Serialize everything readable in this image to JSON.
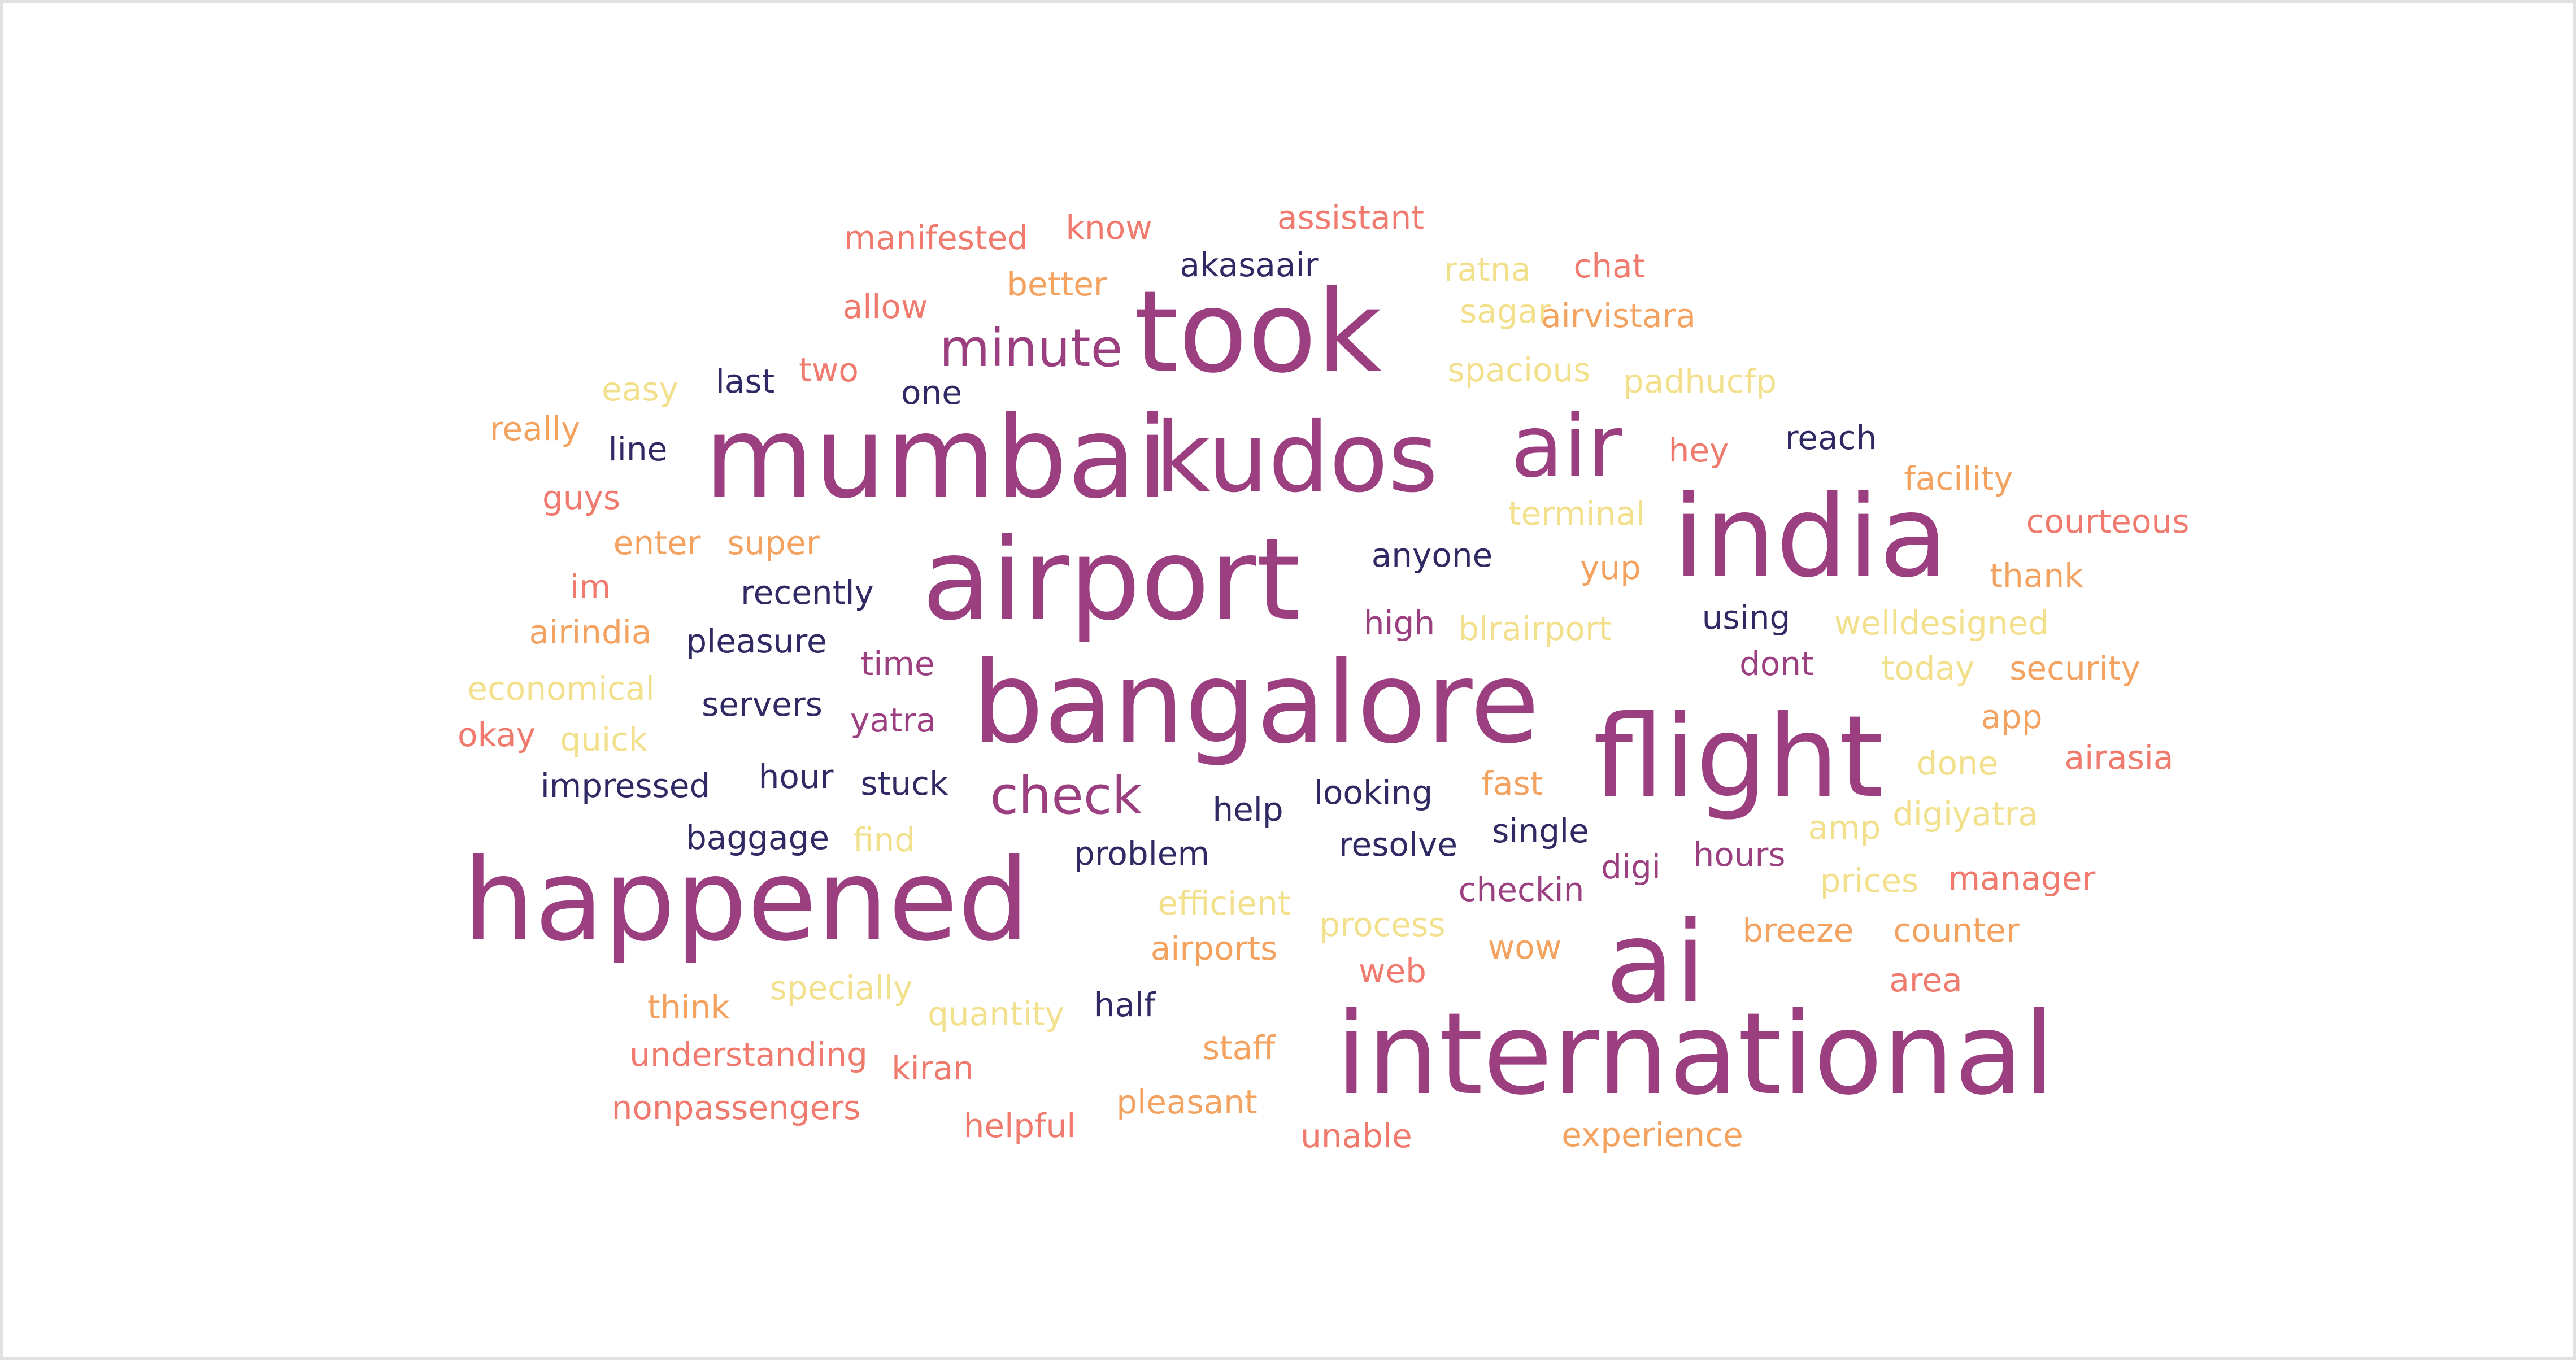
{
  "palette": {
    "plum": "#9c3f80",
    "navy": "#2f2a63",
    "coral": "#ef7a6d",
    "orange": "#f4a25f",
    "yellow": "#f3e08c"
  },
  "words": [
    {
      "text": "manifested",
      "color": "coral"
    },
    {
      "text": "know",
      "color": "coral"
    },
    {
      "text": "assistant",
      "color": "coral"
    },
    {
      "text": "better",
      "color": "orange"
    },
    {
      "text": "akasaair",
      "color": "navy"
    },
    {
      "text": "ratna",
      "color": "yellow"
    },
    {
      "text": "chat",
      "color": "coral"
    },
    {
      "text": "took",
      "color": "plum"
    },
    {
      "text": "allow",
      "color": "coral"
    },
    {
      "text": "sagar",
      "color": "yellow"
    },
    {
      "text": "airvistara",
      "color": "orange"
    },
    {
      "text": "minute",
      "color": "plum"
    },
    {
      "text": "two",
      "color": "coral"
    },
    {
      "text": "spacious",
      "color": "yellow"
    },
    {
      "text": "last",
      "color": "navy"
    },
    {
      "text": "easy",
      "color": "yellow"
    },
    {
      "text": "one",
      "color": "navy"
    },
    {
      "text": "padhucfp",
      "color": "yellow"
    },
    {
      "text": "really",
      "color": "orange"
    },
    {
      "text": "mumbai",
      "color": "plum"
    },
    {
      "text": "kudos",
      "color": "plum"
    },
    {
      "text": "air",
      "color": "plum"
    },
    {
      "text": "reach",
      "color": "navy"
    },
    {
      "text": "line",
      "color": "navy"
    },
    {
      "text": "hey",
      "color": "coral"
    },
    {
      "text": "facility",
      "color": "orange"
    },
    {
      "text": "guys",
      "color": "coral"
    },
    {
      "text": "india",
      "color": "plum"
    },
    {
      "text": "terminal",
      "color": "yellow"
    },
    {
      "text": "courteous",
      "color": "coral"
    },
    {
      "text": "enter",
      "color": "orange"
    },
    {
      "text": "super",
      "color": "orange"
    },
    {
      "text": "airport",
      "color": "plum"
    },
    {
      "text": "anyone",
      "color": "navy"
    },
    {
      "text": "yup",
      "color": "orange"
    },
    {
      "text": "thank",
      "color": "orange"
    },
    {
      "text": "im",
      "color": "coral"
    },
    {
      "text": "recently",
      "color": "navy"
    },
    {
      "text": "using",
      "color": "navy"
    },
    {
      "text": "high",
      "color": "plum"
    },
    {
      "text": "blrairport",
      "color": "yellow"
    },
    {
      "text": "welldesigned",
      "color": "yellow"
    },
    {
      "text": "airindia",
      "color": "orange"
    },
    {
      "text": "pleasure",
      "color": "navy"
    },
    {
      "text": "dont",
      "color": "plum"
    },
    {
      "text": "economical",
      "color": "yellow"
    },
    {
      "text": "time",
      "color": "plum"
    },
    {
      "text": "today",
      "color": "yellow"
    },
    {
      "text": "security",
      "color": "orange"
    },
    {
      "text": "servers",
      "color": "navy"
    },
    {
      "text": "bangalore",
      "color": "plum"
    },
    {
      "text": "okay",
      "color": "coral"
    },
    {
      "text": "quick",
      "color": "yellow"
    },
    {
      "text": "yatra",
      "color": "plum"
    },
    {
      "text": "flight",
      "color": "plum"
    },
    {
      "text": "app",
      "color": "orange"
    },
    {
      "text": "impressed",
      "color": "navy"
    },
    {
      "text": "hour",
      "color": "navy"
    },
    {
      "text": "stuck",
      "color": "navy"
    },
    {
      "text": "done",
      "color": "yellow"
    },
    {
      "text": "airasia",
      "color": "coral"
    },
    {
      "text": "check",
      "color": "plum"
    },
    {
      "text": "fast",
      "color": "orange"
    },
    {
      "text": "looking",
      "color": "navy"
    },
    {
      "text": "help",
      "color": "navy"
    },
    {
      "text": "single",
      "color": "navy"
    },
    {
      "text": "digiyatra",
      "color": "yellow"
    },
    {
      "text": "baggage",
      "color": "navy"
    },
    {
      "text": "find",
      "color": "yellow"
    },
    {
      "text": "amp",
      "color": "yellow"
    },
    {
      "text": "problem",
      "color": "navy"
    },
    {
      "text": "resolve",
      "color": "navy"
    },
    {
      "text": "hours",
      "color": "plum"
    },
    {
      "text": "happened",
      "color": "plum"
    },
    {
      "text": "digi",
      "color": "plum"
    },
    {
      "text": "prices",
      "color": "yellow"
    },
    {
      "text": "manager",
      "color": "coral"
    },
    {
      "text": "checkin",
      "color": "plum"
    },
    {
      "text": "efficient",
      "color": "yellow"
    },
    {
      "text": "process",
      "color": "yellow"
    },
    {
      "text": "breeze",
      "color": "orange"
    },
    {
      "text": "counter",
      "color": "orange"
    },
    {
      "text": "ai",
      "color": "plum"
    },
    {
      "text": "airports",
      "color": "orange"
    },
    {
      "text": "wow",
      "color": "orange"
    },
    {
      "text": "web",
      "color": "coral"
    },
    {
      "text": "specially",
      "color": "yellow"
    },
    {
      "text": "area",
      "color": "coral"
    },
    {
      "text": "think",
      "color": "orange"
    },
    {
      "text": "quantity",
      "color": "yellow"
    },
    {
      "text": "half",
      "color": "navy"
    },
    {
      "text": "international",
      "color": "plum"
    },
    {
      "text": "staff",
      "color": "orange"
    },
    {
      "text": "understanding",
      "color": "coral"
    },
    {
      "text": "kiran",
      "color": "coral"
    },
    {
      "text": "pleasant",
      "color": "orange"
    },
    {
      "text": "nonpassengers",
      "color": "coral"
    },
    {
      "text": "helpful",
      "color": "coral"
    },
    {
      "text": "unable",
      "color": "coral"
    },
    {
      "text": "experience",
      "color": "orange"
    }
  ]
}
